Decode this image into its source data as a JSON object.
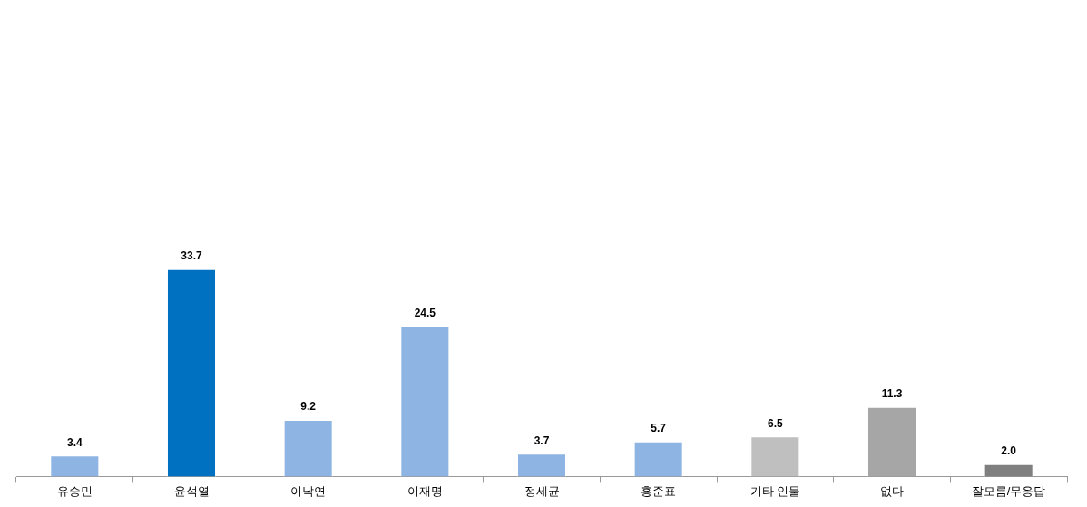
{
  "chart_data": {
    "type": "bar",
    "categories": [
      "유승민",
      "윤석열",
      "이낙연",
      "이재명",
      "정세균",
      "홍준표",
      "기타 인물",
      "없다",
      "잘모름/무응답"
    ],
    "values": [
      3.4,
      33.7,
      9.2,
      24.5,
      3.7,
      5.7,
      6.5,
      11.3,
      2.0
    ],
    "colors": [
      "#8eb4e3",
      "#0070c0",
      "#8eb4e3",
      "#8eb4e3",
      "#8eb4e3",
      "#8eb4e3",
      "#bfbfbf",
      "#a6a6a6",
      "#7f7f7f"
    ],
    "value_labels": [
      "3.4",
      "33.7",
      "9.2",
      "24.5",
      "3.7",
      "5.7",
      "6.5",
      "11.3",
      "2.0"
    ],
    "tick_labels": "x"
  }
}
